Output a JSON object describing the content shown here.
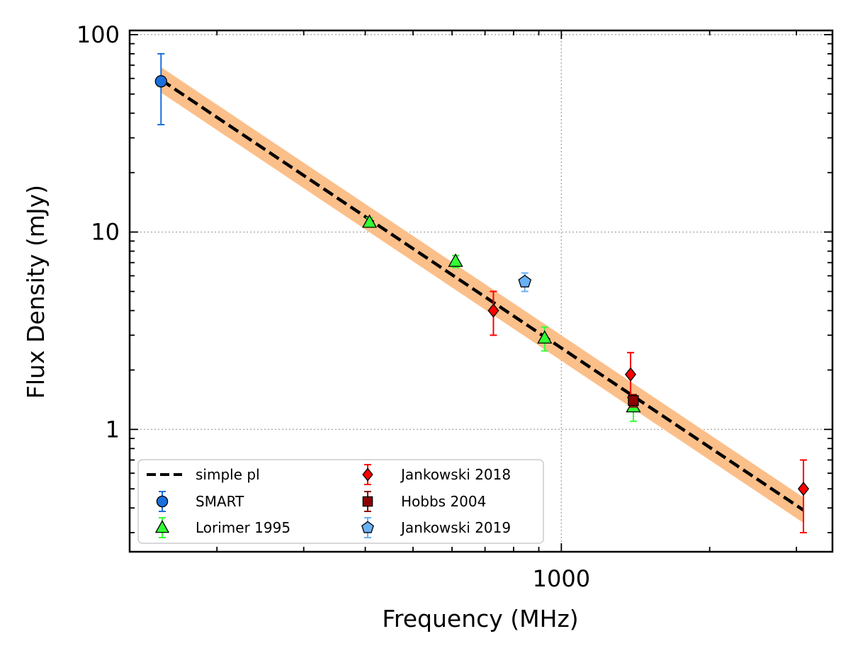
{
  "chart_data": {
    "type": "scatter",
    "title": "",
    "xlabel": "Frequency (MHz)",
    "ylabel": "Flux Density (mJy)",
    "xscale": "log",
    "yscale": "log",
    "xlim": [
      133,
      3550
    ],
    "ylim": [
      0.24,
      105
    ],
    "x_tick_labels": [
      {
        "value": 1000,
        "label": "1000"
      }
    ],
    "y_tick_labels": [
      {
        "value": 1,
        "label": "1"
      },
      {
        "value": 10,
        "label": "10"
      },
      {
        "value": 100,
        "label": "100"
      }
    ],
    "grid": true,
    "legend_position": "lower-left",
    "fit": {
      "name": "simple pl",
      "x_range": [
        154,
        3100
      ],
      "y_at_start": 59,
      "y_at_end": 0.39,
      "band_fraction": 0.16,
      "line_color": "#000000",
      "band_color": "#fbbf8a"
    },
    "series": [
      {
        "name": "SMART",
        "marker": "circle",
        "color": "#1a6fdb",
        "errcolor": "#1a6fdb",
        "points": [
          {
            "x": 154,
            "y": 58,
            "ylo": 35,
            "yhi": 80
          }
        ]
      },
      {
        "name": "Lorimer 1995",
        "marker": "triangle",
        "color": "#33ff33",
        "errcolor": "#33ff33",
        "points": [
          {
            "x": 408,
            "y": 11.2,
            "ylo": 10.6,
            "yhi": 11.8
          },
          {
            "x": 610,
            "y": 7.1,
            "ylo": 6.6,
            "yhi": 7.6
          },
          {
            "x": 925,
            "y": 2.9,
            "ylo": 2.5,
            "yhi": 3.3
          },
          {
            "x": 1400,
            "y": 1.3,
            "ylo": 1.1,
            "yhi": 1.5
          }
        ]
      },
      {
        "name": "Jankowski 2018",
        "marker": "diamond",
        "color": "#ff0000",
        "errcolor": "#ff0000",
        "points": [
          {
            "x": 728,
            "y": 4.0,
            "ylo": 3.0,
            "yhi": 5.0
          },
          {
            "x": 1382,
            "y": 1.9,
            "ylo": 1.45,
            "yhi": 2.45
          },
          {
            "x": 3100,
            "y": 0.5,
            "ylo": 0.3,
            "yhi": 0.7
          }
        ]
      },
      {
        "name": "Hobbs 2004",
        "marker": "square",
        "color": "#8b0000",
        "errcolor": "#8b0000",
        "points": [
          {
            "x": 1400,
            "y": 1.4,
            "ylo": 1.3,
            "yhi": 1.5
          }
        ]
      },
      {
        "name": "Jankowski 2019",
        "marker": "pentagon",
        "color": "#6ab0f5",
        "errcolor": "#6ab0f5",
        "points": [
          {
            "x": 843,
            "y": 5.6,
            "ylo": 5.0,
            "yhi": 6.2
          }
        ]
      }
    ]
  }
}
